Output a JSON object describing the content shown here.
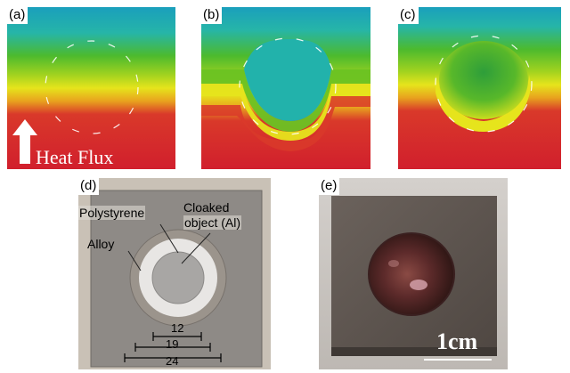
{
  "panels": {
    "a": {
      "tag": "(a)",
      "caption": "Heat Flux"
    },
    "b": {
      "tag": "(b)"
    },
    "c": {
      "tag": "(c)"
    },
    "d": {
      "tag": "(d)",
      "labels": {
        "polystyrene": "Polystyrene",
        "cloaked_line1": "Cloaked",
        "cloaked_line2": "object (Al)",
        "alloy": "Alloy"
      },
      "dimensions": [
        "12",
        "19",
        "24"
      ]
    },
    "e": {
      "tag": "(e)",
      "scale_bar": "1cm"
    }
  },
  "colors": {
    "thermal_cool": "#21b0b3",
    "thermal_green": "#4cba2e",
    "thermal_yellow": "#dfe21c",
    "thermal_hot": "#d6222a"
  }
}
